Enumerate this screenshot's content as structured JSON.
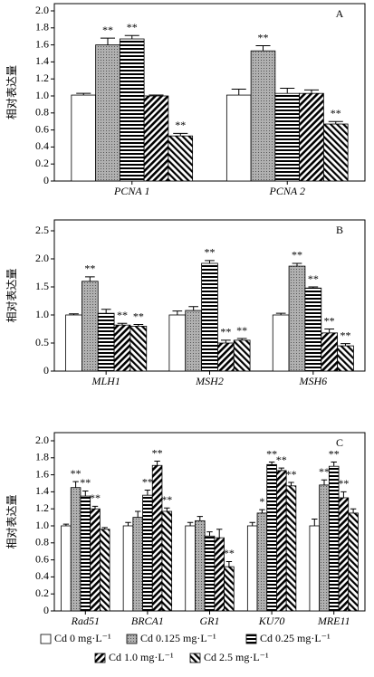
{
  "chart_data": [
    {
      "type": "bar",
      "label": "A",
      "y_label": "相对表达量",
      "ylim": [
        0,
        2
      ],
      "yticks": [
        0,
        0.2,
        0.4,
        0.6,
        0.8,
        {
          "value": 1,
          "label": "1.0"
        },
        1.2,
        1.4,
        1.6,
        1.8,
        {
          "value": 2,
          "label": "2.0"
        }
      ],
      "categories": [
        "PCNA 1",
        "PCNA 2"
      ],
      "series": [
        {
          "values": [
            1.01,
            1.01
          ],
          "errors": [
            0.02,
            0.07
          ],
          "sig": [
            null,
            null
          ]
        },
        {
          "values": [
            1.6,
            1.53
          ],
          "errors": [
            0.08,
            0.06
          ],
          "sig": [
            "**",
            "**"
          ]
        },
        {
          "values": [
            1.67,
            1.03
          ],
          "errors": [
            0.04,
            0.06
          ],
          "sig": [
            "**",
            null
          ]
        },
        {
          "values": [
            1.0,
            1.03
          ],
          "errors": [
            0.01,
            0.04
          ],
          "sig": [
            null,
            null
          ]
        },
        {
          "values": [
            0.53,
            0.67
          ],
          "errors": [
            0.03,
            0.03
          ],
          "sig": [
            "**",
            "**"
          ]
        }
      ]
    },
    {
      "type": "bar",
      "label": "B",
      "y_label": "相对表达量",
      "ylim": [
        0,
        2.5
      ],
      "yticks": [
        0,
        0.5,
        {
          "value": 1,
          "label": "1.0"
        },
        1.5,
        {
          "value": 2,
          "label": "2.0"
        },
        2.5
      ],
      "categories": [
        "MLH1",
        "MSH2",
        "MSH6"
      ],
      "series": [
        {
          "values": [
            1.0,
            1.0,
            1.0
          ],
          "errors": [
            0.02,
            0.07,
            0.03
          ],
          "sig": [
            null,
            null,
            null
          ]
        },
        {
          "values": [
            1.6,
            1.08,
            1.87
          ],
          "errors": [
            0.08,
            0.07,
            0.05
          ],
          "sig": [
            "**",
            null,
            "**"
          ]
        },
        {
          "values": [
            1.03,
            1.92,
            1.48
          ],
          "errors": [
            0.07,
            0.05,
            0.02
          ],
          "sig": [
            null,
            "**",
            "**"
          ]
        },
        {
          "values": [
            0.82,
            0.5,
            0.68
          ],
          "errors": [
            0.03,
            0.05,
            0.07
          ],
          "sig": [
            "**",
            "**",
            "**"
          ]
        },
        {
          "values": [
            0.8,
            0.55,
            0.45
          ],
          "errors": [
            0.03,
            0.03,
            0.04
          ],
          "sig": [
            "**",
            "**",
            "**"
          ]
        }
      ]
    },
    {
      "type": "bar",
      "label": "C",
      "y_label": "相对表达量",
      "ylim": [
        0,
        2
      ],
      "yticks": [
        0,
        0.2,
        0.4,
        0.6,
        0.8,
        {
          "value": 1,
          "label": "1.0"
        },
        1.2,
        1.4,
        1.6,
        1.8,
        {
          "value": 2,
          "label": "2.0"
        }
      ],
      "categories": [
        "Rad51",
        "BRCA1",
        "GR1",
        "KU70",
        "MRE11"
      ],
      "series": [
        {
          "values": [
            1.0,
            1.0,
            1.0,
            1.0,
            1.0
          ],
          "errors": [
            0.02,
            0.04,
            0.04,
            0.04,
            0.08
          ],
          "sig": [
            null,
            null,
            null,
            null,
            null
          ]
        },
        {
          "values": [
            1.45,
            1.1,
            1.06,
            1.15,
            1.48
          ],
          "errors": [
            0.07,
            0.07,
            0.05,
            0.04,
            0.06
          ],
          "sig": [
            "**",
            null,
            null,
            "*",
            "**"
          ]
        },
        {
          "values": [
            1.35,
            1.36,
            0.88,
            1.72,
            1.7
          ],
          "errors": [
            0.06,
            0.06,
            0.05,
            0.03,
            0.05
          ],
          "sig": [
            "**",
            "**",
            null,
            "**",
            "**"
          ]
        },
        {
          "values": [
            1.2,
            1.71,
            0.86,
            1.65,
            1.33
          ],
          "errors": [
            0.03,
            0.05,
            0.1,
            0.03,
            0.07
          ],
          "sig": [
            "**",
            "**",
            null,
            "**",
            "**"
          ]
        },
        {
          "values": [
            0.96,
            1.17,
            0.52,
            1.47,
            1.15
          ],
          "errors": [
            0.02,
            0.04,
            0.06,
            0.04,
            0.05
          ],
          "sig": [
            null,
            "**",
            "**",
            "**",
            null
          ]
        }
      ]
    }
  ],
  "legend": [
    {
      "name": "Cd 0 mg·L⁻¹",
      "pattern": "none"
    },
    {
      "name": "Cd 0.125 mg·L⁻¹",
      "pattern": "gray"
    },
    {
      "name": "Cd 0.25 mg·L⁻¹",
      "pattern": "horizontal"
    },
    {
      "name": "Cd 1.0 mg·L⁻¹",
      "pattern": "diagonal"
    },
    {
      "name": "Cd 2.5 mg·L⁻¹",
      "pattern": "backdiagonal"
    }
  ]
}
